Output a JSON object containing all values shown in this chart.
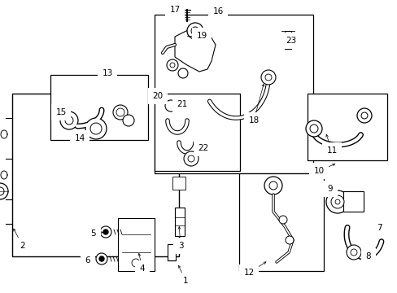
{
  "bg_color": "#ffffff",
  "fig_width": 4.89,
  "fig_height": 3.6,
  "dpi": 100,
  "line_color": "#000000",
  "text_color": "#000000",
  "font_size": 7.5,
  "font_size_small": 6.5
}
